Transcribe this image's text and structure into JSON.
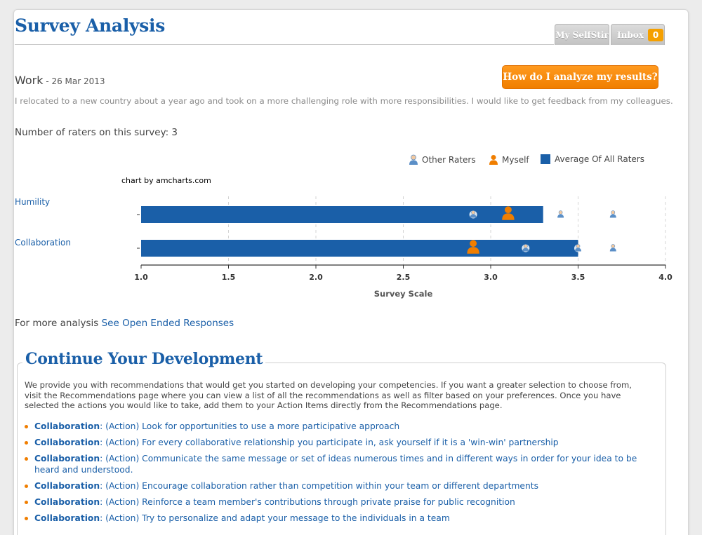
{
  "header": {
    "title": "Survey Analysis",
    "tabs": [
      {
        "label": "My SelfStir"
      },
      {
        "label": "Inbox",
        "badge": "0"
      }
    ]
  },
  "survey": {
    "name": "Work",
    "date": " - 26 Mar 2013",
    "description": "I relocated to a new country about a year ago and took on a more challenging role with more responsibilities. I would like to get feedback from my colleagues.",
    "raters_text": "Number of raters on this survey: 3",
    "analyze_button": "How do I analyze my results?"
  },
  "legend": {
    "other": "Other Raters",
    "myself": "Myself",
    "average": "Average Of All Raters"
  },
  "chart_credit": "chart by amcharts.com",
  "chart_data": {
    "type": "bar",
    "orientation": "horizontal",
    "categories": [
      "Humility",
      "Collaboration"
    ],
    "series": [
      {
        "name": "Average Of All Raters",
        "values": [
          3.3,
          3.5
        ]
      },
      {
        "name": "Myself",
        "values": [
          3.1,
          2.9
        ]
      },
      {
        "name": "Other Raters",
        "values": [
          [
            2.9,
            3.4,
            3.7
          ],
          [
            3.2,
            3.5,
            3.7
          ]
        ]
      }
    ],
    "xlim": [
      1.0,
      4.0
    ],
    "xticks": [
      "1.0",
      "1.5",
      "2.0",
      "2.5",
      "3.0",
      "3.5",
      "4.0"
    ],
    "xlabel": "Survey Scale",
    "ylabel": "",
    "grid": "dashed vertical",
    "legend": "top-right",
    "colors": {
      "bar": "#1a5fa8",
      "myself": "#f07e00",
      "other": "#5b8fc7"
    }
  },
  "more_analysis": {
    "prefix": "For more analysis ",
    "link": "See Open Ended Responses"
  },
  "development": {
    "title": "Continue Your Development",
    "intro": "We provide you with recommendations that would get you started on developing your competencies. If you want a greater selection to choose from, visit the Recommendations page where you can view a list of all the recommendations as well as filter based on your preferences. Once you have selected the actions you would like to take, add them to your Action Items directly from the Recommendations page.",
    "items": [
      {
        "competency": "Collaboration",
        "text": ": (Action) Look for opportunities to use a more participative approach"
      },
      {
        "competency": "Collaboration",
        "text": ": (Action) For every collaborative relationship you participate in, ask yourself if it is a 'win-win' partnership"
      },
      {
        "competency": "Collaboration",
        "text": ": (Action) Communicate the same message or set of ideas numerous times and in different ways in order for your idea to be heard and understood."
      },
      {
        "competency": "Collaboration",
        "text": ": (Action) Encourage collaboration rather than competition within your team or different departments"
      },
      {
        "competency": "Collaboration",
        "text": ": (Action) Reinforce a team member's contributions through private praise for public recognition"
      },
      {
        "competency": "Collaboration",
        "text": ": (Action) Try to personalize and adapt your message to the individuals in a team"
      }
    ]
  }
}
